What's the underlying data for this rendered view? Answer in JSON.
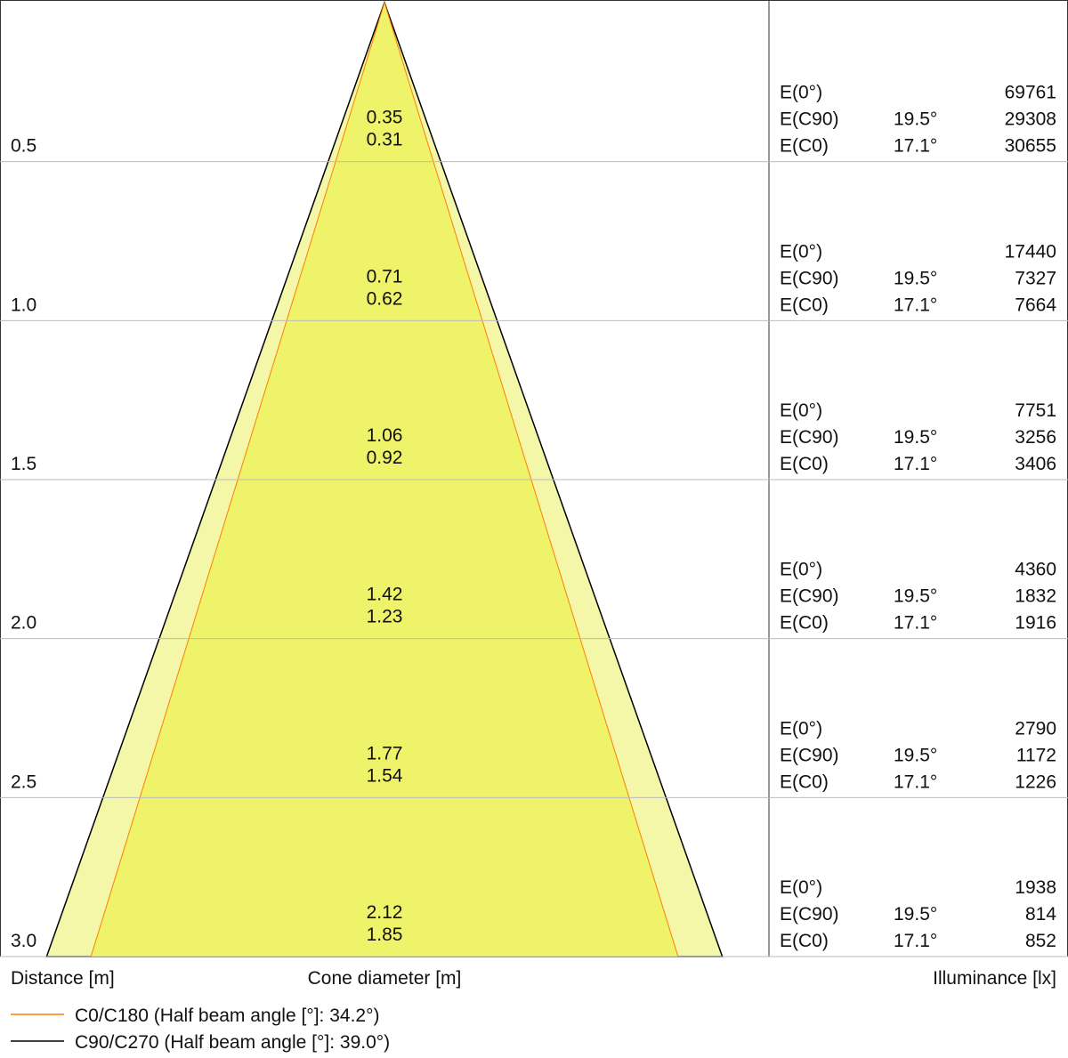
{
  "chart_data": {
    "type": "cone",
    "x_label": "Distance [m]",
    "cone_label": "Cone diameter [m]",
    "illuminance_label": "Illuminance [lx]",
    "ylim": [
      0,
      3
    ],
    "distances": [
      0.5,
      {
        "value": 1,
        "label": "1.0"
      },
      1.5,
      {
        "value": 2,
        "label": "2.0"
      },
      2.5,
      {
        "value": 3,
        "label": "3.0"
      }
    ],
    "center": {
      "label": "E(0°)",
      "illuminance": [
        69761,
        17440,
        7751,
        4360,
        2790,
        1938
      ]
    },
    "series": [
      {
        "name": "C0/C180 (Half beam angle [°]: 34.2°)",
        "color": "#ff7f00",
        "fill": "#eff36a",
        "illuminance_label": "E(C0)",
        "half_angle": {
          "value": 17.1,
          "label": "17.1°"
        },
        "diameters": [
          0.31,
          0.62,
          0.92,
          1.23,
          1.54,
          1.85
        ],
        "illuminance": [
          30655,
          7664,
          3406,
          1916,
          1226,
          852
        ]
      },
      {
        "name": "C90/C270 (Half beam angle [°]: 39.0°)",
        "color": "#000000",
        "fill": "#f4f6a8",
        "illuminance_label": "E(C90)",
        "half_angle": {
          "value": 19.5,
          "label": "19.5°"
        },
        "diameters": [
          0.35,
          0.71,
          1.06,
          1.42,
          1.77,
          2.12
        ],
        "illuminance": [
          29308,
          7327,
          3256,
          1832,
          1172,
          814
        ]
      }
    ]
  }
}
